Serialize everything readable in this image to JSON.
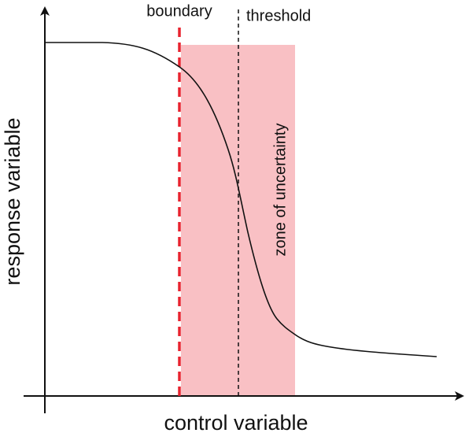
{
  "axes": {
    "x_label": "control variable",
    "y_label": "response variable"
  },
  "annotations": {
    "boundary": "boundary",
    "threshold": "threshold",
    "zone": "zone of uncertainty"
  }
}
